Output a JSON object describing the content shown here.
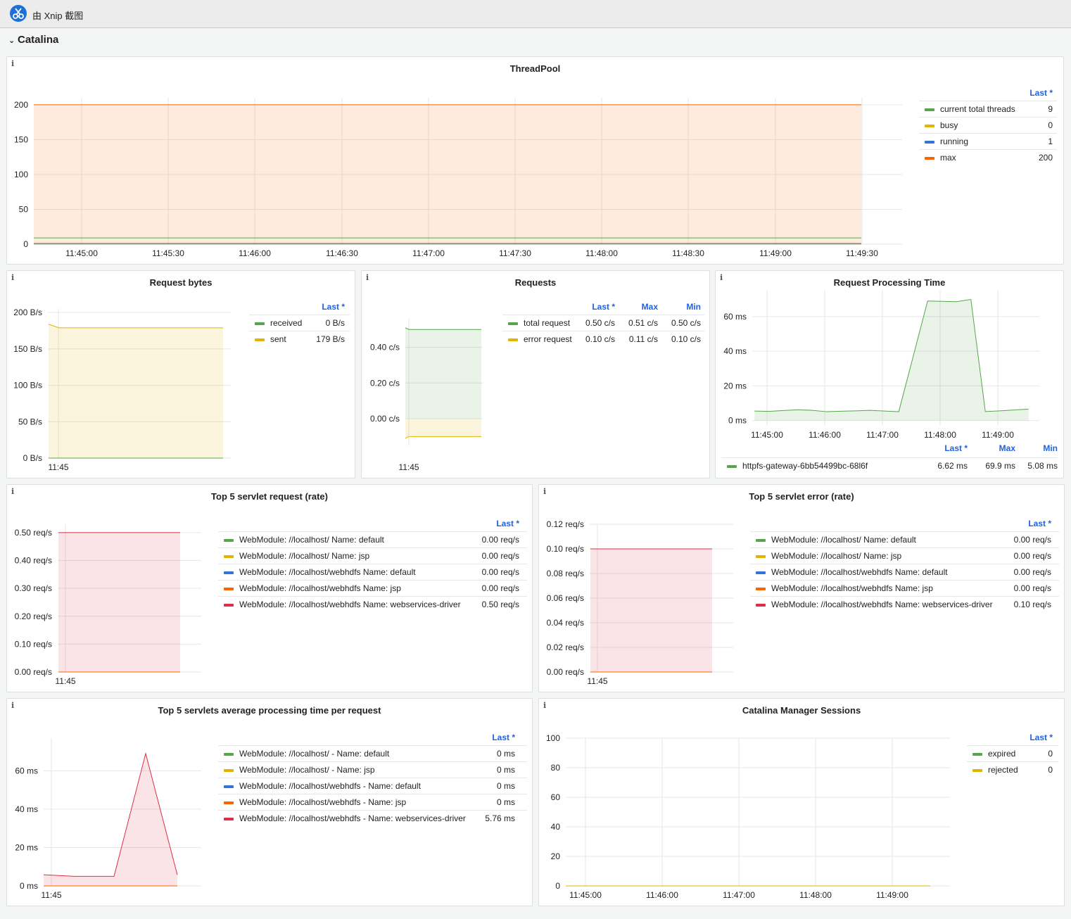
{
  "window": {
    "title": "由 Xnip 截图",
    "icon": "scissors-icon"
  },
  "row": {
    "title": "Catalina",
    "chevron": "⌄"
  },
  "panel_info_glyph": "i",
  "colors": {
    "green": "#56a64b",
    "yellow": "#e0b400",
    "blue": "#3274d9",
    "orange": "#fa6400",
    "red": "#e02f44"
  },
  "panels": {
    "threadpool": {
      "title": "ThreadPool",
      "legend_headers": [
        "Last *"
      ],
      "legend": [
        {
          "name": "current total threads",
          "values": [
            "9"
          ]
        },
        {
          "name": "busy",
          "values": [
            "0"
          ]
        },
        {
          "name": "running",
          "values": [
            "1"
          ]
        },
        {
          "name": "max",
          "values": [
            "200"
          ]
        }
      ]
    },
    "request_bytes": {
      "title": "Request bytes",
      "legend_headers": [
        "Last *"
      ],
      "legend": [
        {
          "name": "received",
          "values": [
            "0 B/s"
          ]
        },
        {
          "name": "sent",
          "values": [
            "179 B/s"
          ]
        }
      ]
    },
    "requests": {
      "title": "Requests",
      "legend_headers": [
        "Last *",
        "Max",
        "Min"
      ],
      "legend": [
        {
          "name": "total request",
          "values": [
            "0.50 c/s",
            "0.51 c/s",
            "0.50 c/s"
          ]
        },
        {
          "name": "error request",
          "values": [
            "0.10 c/s",
            "0.11 c/s",
            "0.10 c/s"
          ]
        }
      ]
    },
    "processing_time": {
      "title": "Request Processing Time",
      "legend_headers": [
        "Last *",
        "Max",
        "Min"
      ],
      "legend": [
        {
          "name": "httpfs-gateway-6bb54499bc-68l6f",
          "values": [
            "6.62 ms",
            "69.9 ms",
            "5.08 ms"
          ]
        }
      ]
    },
    "servlet_request": {
      "title": "Top 5 servlet request (rate)",
      "legend_headers": [
        "Last *"
      ],
      "legend": [
        {
          "name": "WebModule: //localhost/ Name: default",
          "values": [
            "0.00 req/s"
          ]
        },
        {
          "name": "WebModule: //localhost/ Name: jsp",
          "values": [
            "0.00 req/s"
          ]
        },
        {
          "name": "WebModule: //localhost/webhdfs Name: default",
          "values": [
            "0.00 req/s"
          ]
        },
        {
          "name": "WebModule: //localhost/webhdfs Name: jsp",
          "values": [
            "0.00 req/s"
          ]
        },
        {
          "name": "WebModule: //localhost/webhdfs Name: webservices-driver",
          "values": [
            "0.50 req/s"
          ]
        }
      ]
    },
    "servlet_error": {
      "title": "Top 5 servlet error (rate)",
      "legend_headers": [
        "Last *"
      ],
      "legend": [
        {
          "name": "WebModule: //localhost/ Name: default",
          "values": [
            "0.00 req/s"
          ]
        },
        {
          "name": "WebModule: //localhost/ Name: jsp",
          "values": [
            "0.00 req/s"
          ]
        },
        {
          "name": "WebModule: //localhost/webhdfs Name: default",
          "values": [
            "0.00 req/s"
          ]
        },
        {
          "name": "WebModule: //localhost/webhdfs Name: jsp",
          "values": [
            "0.00 req/s"
          ]
        },
        {
          "name": "WebModule: //localhost/webhdfs Name: webservices-driver",
          "values": [
            "0.10 req/s"
          ]
        }
      ]
    },
    "servlet_time": {
      "title": "Top 5 servlets average processing time per request",
      "legend_headers": [
        "Last *"
      ],
      "legend": [
        {
          "name": "WebModule: //localhost/ - Name: default",
          "values": [
            "0 ms"
          ]
        },
        {
          "name": "WebModule: //localhost/ - Name: jsp",
          "values": [
            "0 ms"
          ]
        },
        {
          "name": "WebModule: //localhost/webhdfs - Name: default",
          "values": [
            "0 ms"
          ]
        },
        {
          "name": "WebModule: //localhost/webhdfs - Name: jsp",
          "values": [
            "0 ms"
          ]
        },
        {
          "name": "WebModule: //localhost/webhdfs - Name: webservices-driver",
          "values": [
            "5.76 ms"
          ]
        }
      ]
    },
    "sessions": {
      "title": "Catalina Manager Sessions",
      "legend_headers": [
        "Last *"
      ],
      "legend": [
        {
          "name": "expired",
          "values": [
            "0"
          ]
        },
        {
          "name": "rejected",
          "values": [
            "0"
          ]
        }
      ]
    }
  },
  "chart_data": [
    {
      "id": "threadpool",
      "type": "area",
      "x": [
        "11:44:45",
        "11:49:33"
      ],
      "x_ticks": [
        "11:45:00",
        "11:45:30",
        "11:46:00",
        "11:46:30",
        "11:47:00",
        "11:47:30",
        "11:48:00",
        "11:48:30",
        "11:49:00",
        "11:49:30"
      ],
      "y_ticks": [
        "0",
        "50",
        "100",
        "150",
        "200"
      ],
      "ylim": [
        0,
        210
      ],
      "series": [
        {
          "name": "max",
          "color": "orange",
          "values": [
            200,
            200
          ],
          "fill": true
        },
        {
          "name": "current total threads",
          "color": "green",
          "values": [
            9,
            9
          ]
        },
        {
          "name": "running",
          "color": "blue",
          "values": [
            1,
            1
          ]
        },
        {
          "name": "busy",
          "color": "yellow",
          "values": [
            0,
            0
          ]
        }
      ]
    },
    {
      "id": "request_bytes",
      "type": "area",
      "x_ticks": [
        "11:45"
      ],
      "y_ticks": [
        "0 B/s",
        "50 B/s",
        "100 B/s",
        "150 B/s",
        "200 B/s"
      ],
      "ylim": [
        0,
        205
      ],
      "series": [
        {
          "name": "sent",
          "color": "yellow",
          "values": [
            184,
            179,
            179
          ],
          "fill": true
        },
        {
          "name": "received",
          "color": "green",
          "values": [
            0,
            0,
            0
          ]
        }
      ]
    },
    {
      "id": "requests",
      "type": "area",
      "x_ticks": [
        "11:45"
      ],
      "y_ticks": [
        "0.00 c/s",
        "0.20 c/s",
        "0.40 c/s"
      ],
      "ylim": [
        -0.15,
        0.56
      ],
      "series": [
        {
          "name": "total request",
          "color": "green",
          "values": [
            0.51,
            0.5,
            0.5
          ],
          "fill": true
        },
        {
          "name": "error request",
          "color": "yellow",
          "values": [
            -0.11,
            -0.1,
            -0.1
          ],
          "fill": true
        }
      ]
    },
    {
      "id": "processing_time",
      "type": "area",
      "x_ticks": [
        "11:45:00",
        "11:46:00",
        "11:47:00",
        "11:48:00",
        "11:49:00"
      ],
      "y_ticks": [
        "0 ms",
        "20 ms",
        "40 ms",
        "60 ms"
      ],
      "ylim": [
        -3,
        75
      ],
      "series": [
        {
          "name": "httpfs-gateway-6bb54499bc-68l6f",
          "color": "green",
          "x": [
            "11:44:47",
            "11:45:02",
            "11:45:17",
            "11:45:32",
            "11:45:47",
            "11:46:02",
            "11:46:17",
            "11:46:32",
            "11:46:47",
            "11:47:02",
            "11:47:17",
            "11:47:32",
            "11:47:47",
            "11:48:02",
            "11:48:17",
            "11:48:32",
            "11:48:47",
            "11:49:02",
            "11:49:17",
            "11:49:32"
          ],
          "values": [
            5.5,
            5.3,
            5.8,
            6.2,
            5.9,
            5.1,
            5.4,
            5.6,
            5.9,
            5.5,
            5.1,
            37,
            69,
            68.8,
            68.6,
            69.9,
            5.2,
            5.6,
            6.1,
            6.62
          ],
          "fill": true
        }
      ]
    },
    {
      "id": "servlet_request",
      "type": "area",
      "x_ticks": [
        "11:45"
      ],
      "y_ticks": [
        "0.00 req/s",
        "0.10 req/s",
        "0.20 req/s",
        "0.30 req/s",
        "0.40 req/s",
        "0.50 req/s"
      ],
      "ylim": [
        0,
        0.53
      ],
      "series": [
        {
          "name": "WebModule: //localhost/webhdfs Name: webservices-driver",
          "color": "red",
          "values": [
            0.5,
            0.5
          ],
          "fill": true
        },
        {
          "name": "WebModule: //localhost/webhdfs Name: jsp",
          "color": "orange",
          "values": [
            0,
            0
          ]
        }
      ]
    },
    {
      "id": "servlet_error",
      "type": "area",
      "x_ticks": [
        "11:45"
      ],
      "y_ticks": [
        "0.00 req/s",
        "0.02 req/s",
        "0.04 req/s",
        "0.06 req/s",
        "0.08 req/s",
        "0.10 req/s",
        "0.12 req/s"
      ],
      "ylim": [
        0,
        0.12
      ],
      "series": [
        {
          "name": "WebModule: //localhost/webhdfs Name: webservices-driver",
          "color": "red",
          "values": [
            0.1,
            0.1
          ],
          "fill": true
        },
        {
          "name": "WebModule: //localhost/webhdfs Name: jsp",
          "color": "orange",
          "values": [
            0,
            0
          ]
        }
      ]
    },
    {
      "id": "servlet_time",
      "type": "area",
      "x_ticks": [
        "11:45"
      ],
      "y_ticks": [
        "0 ms",
        "20 ms",
        "40 ms",
        "60 ms"
      ],
      "ylim": [
        0,
        77
      ],
      "series": [
        {
          "name": "WebModule: //localhost/webhdfs - Name: webservices-driver",
          "color": "red",
          "values": [
            5.8,
            5,
            5,
            69,
            5.76
          ],
          "fill": true
        },
        {
          "name": "WebModule: //localhost/webhdfs - Name: jsp",
          "color": "orange",
          "values": [
            0,
            0,
            0,
            0,
            0
          ]
        }
      ]
    },
    {
      "id": "sessions",
      "type": "line",
      "x": [
        "11:44:53",
        "11:49:40"
      ],
      "x_ticks": [
        "11:45:00",
        "11:46:00",
        "11:47:00",
        "11:48:00",
        "11:49:00"
      ],
      "y_ticks": [
        "0",
        "20",
        "40",
        "60",
        "80",
        "100"
      ],
      "ylim": [
        0,
        100
      ],
      "series": [
        {
          "name": "expired",
          "color": "green",
          "values": [
            0,
            0
          ]
        },
        {
          "name": "rejected",
          "color": "yellow",
          "values": [
            0,
            0
          ]
        }
      ]
    }
  ]
}
